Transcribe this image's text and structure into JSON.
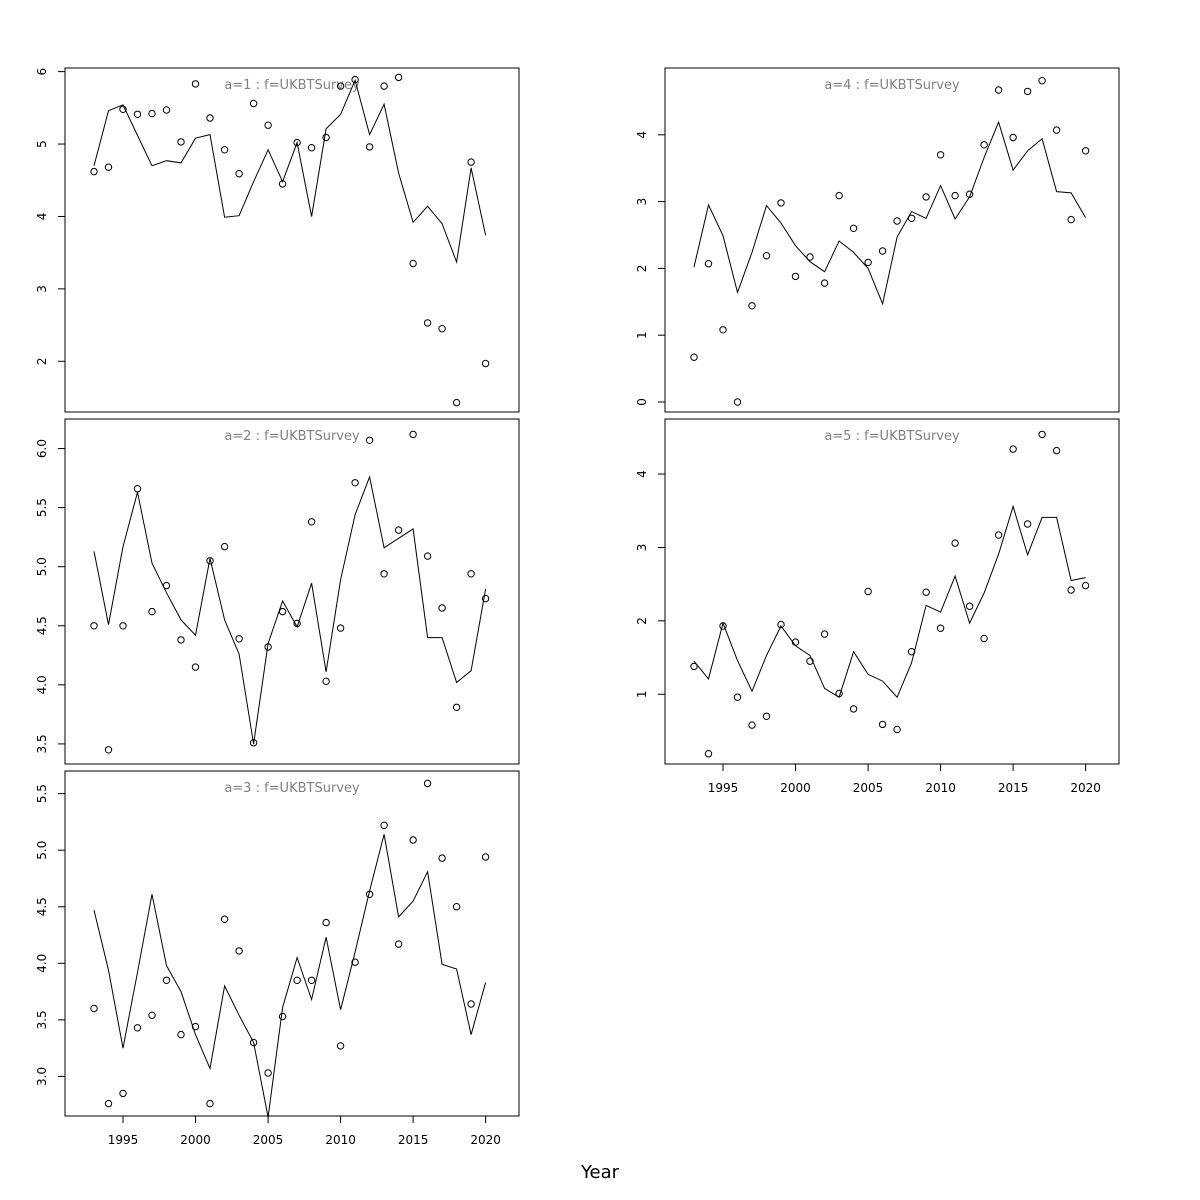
{
  "xlabel": "Year",
  "chart_data": [
    {
      "type": "line",
      "title": "a=1 : f=UKBTSurvey",
      "x": [
        1993,
        1994,
        1995,
        1996,
        1997,
        1998,
        1999,
        2000,
        2001,
        2002,
        2003,
        2004,
        2005,
        2006,
        2007,
        2008,
        2009,
        2010,
        2011,
        2012,
        2013,
        2014,
        2015,
        2016,
        2017,
        2018,
        2019,
        2020
      ],
      "series": [
        {
          "style": "points",
          "values": [
            4.62,
            4.68,
            5.48,
            5.41,
            5.42,
            5.47,
            5.03,
            5.83,
            5.36,
            4.92,
            4.59,
            5.56,
            5.26,
            4.45,
            5.02,
            4.95,
            5.09,
            5.8,
            5.89,
            4.96,
            5.8,
            5.92,
            3.35,
            2.53,
            2.45,
            1.43,
            4.75,
            1.97
          ]
        },
        {
          "style": "line",
          "values": [
            4.7,
            5.46,
            5.54,
            5.12,
            4.7,
            4.77,
            4.74,
            5.08,
            5.13,
            3.99,
            4.01,
            4.48,
            4.92,
            4.48,
            5.02,
            4.0,
            5.21,
            5.41,
            5.88,
            5.13,
            5.55,
            4.6,
            3.92,
            4.14,
            3.9,
            3.37,
            4.67,
            3.74
          ]
        }
      ],
      "ylim": [
        1.3,
        6.05
      ],
      "yticks": [
        2,
        3,
        4,
        5,
        6
      ],
      "yticklabels": [
        "2",
        "3",
        "4",
        "5",
        "6"
      ],
      "xticks": [],
      "xticklabels": []
    },
    {
      "type": "line",
      "title": "a=2 : f=UKBTSurvey",
      "x": [
        1993,
        1994,
        1995,
        1996,
        1997,
        1998,
        1999,
        2000,
        2001,
        2002,
        2003,
        2004,
        2005,
        2006,
        2007,
        2008,
        2009,
        2010,
        2011,
        2012,
        2013,
        2014,
        2015,
        2016,
        2017,
        2018,
        2019,
        2020
      ],
      "series": [
        {
          "style": "points",
          "values": [
            4.5,
            3.45,
            4.5,
            5.66,
            4.62,
            4.84,
            4.38,
            4.15,
            5.05,
            5.17,
            4.39,
            3.51,
            4.32,
            4.62,
            4.52,
            5.38,
            4.03,
            4.48,
            5.71,
            6.07,
            4.94,
            5.31,
            6.12,
            5.09,
            4.65,
            3.81,
            4.94,
            4.73
          ]
        },
        {
          "style": "line",
          "values": [
            5.13,
            4.51,
            5.17,
            5.63,
            5.03,
            4.78,
            4.55,
            4.42,
            5.07,
            4.55,
            4.26,
            3.5,
            4.35,
            4.71,
            4.49,
            4.86,
            4.11,
            4.89,
            5.44,
            5.76,
            5.16,
            5.24,
            5.32,
            4.4,
            4.4,
            4.02,
            4.12,
            4.81
          ]
        }
      ],
      "ylim": [
        3.33,
        6.25
      ],
      "yticks": [
        3.5,
        4.0,
        4.5,
        5.0,
        5.5,
        6.0
      ],
      "yticklabels": [
        "3.5",
        "4.0",
        "4.5",
        "5.0",
        "5.5",
        "6.0"
      ],
      "xticks": [],
      "xticklabels": []
    },
    {
      "type": "line",
      "title": "a=3 : f=UKBTSurvey",
      "x": [
        1993,
        1994,
        1995,
        1996,
        1997,
        1998,
        1999,
        2000,
        2001,
        2002,
        2003,
        2004,
        2005,
        2006,
        2007,
        2008,
        2009,
        2010,
        2011,
        2012,
        2013,
        2014,
        2015,
        2016,
        2017,
        2018,
        2019,
        2020
      ],
      "series": [
        {
          "style": "points",
          "values": [
            3.6,
            2.76,
            2.85,
            3.43,
            3.54,
            3.85,
            3.37,
            3.44,
            2.76,
            4.39,
            4.11,
            3.3,
            3.03,
            3.53,
            3.85,
            3.85,
            4.36,
            3.27,
            4.01,
            4.61,
            5.22,
            4.17,
            5.09,
            5.59,
            4.93,
            4.5,
            3.64,
            4.94
          ]
        },
        {
          "style": "line",
          "values": [
            4.47,
            3.94,
            3.25,
            3.92,
            4.61,
            3.98,
            3.75,
            3.37,
            3.07,
            3.8,
            3.54,
            3.3,
            2.64,
            3.61,
            4.05,
            3.68,
            4.23,
            3.59,
            4.1,
            4.64,
            5.14,
            4.41,
            4.55,
            4.81,
            3.99,
            3.95,
            3.37,
            3.83
          ]
        }
      ],
      "ylim": [
        2.65,
        5.7
      ],
      "yticks": [
        3.0,
        3.5,
        4.0,
        4.5,
        5.0,
        5.5
      ],
      "yticklabels": [
        "3.0",
        "3.5",
        "4.0",
        "4.5",
        "5.0",
        "5.5"
      ],
      "xticks": [
        1995,
        2000,
        2005,
        2010,
        2015,
        2020
      ],
      "xticklabels": [
        "1995",
        "2000",
        "2005",
        "2010",
        "2015",
        "2020"
      ]
    },
    {
      "type": "line",
      "title": "a=4 : f=UKBTSurvey",
      "x": [
        1993,
        1994,
        1995,
        1996,
        1997,
        1998,
        1999,
        2000,
        2001,
        2002,
        2003,
        2004,
        2005,
        2006,
        2007,
        2008,
        2009,
        2010,
        2011,
        2012,
        2013,
        2014,
        2015,
        2016,
        2017,
        2018,
        2019,
        2020
      ],
      "series": [
        {
          "style": "points",
          "values": [
            0.67,
            2.07,
            1.08,
            0.0,
            1.44,
            2.19,
            2.98,
            1.88,
            2.17,
            1.78,
            3.09,
            2.6,
            2.09,
            2.26,
            2.71,
            2.75,
            3.07,
            3.7,
            3.09,
            3.11,
            3.85,
            4.67,
            3.96,
            4.65,
            4.81,
            4.07,
            2.73,
            3.76
          ]
        },
        {
          "style": "line",
          "values": [
            2.02,
            2.95,
            2.49,
            1.64,
            2.24,
            2.94,
            2.68,
            2.34,
            2.1,
            1.95,
            2.41,
            2.24,
            2.0,
            1.47,
            2.47,
            2.85,
            2.75,
            3.24,
            2.74,
            3.07,
            3.66,
            4.19,
            3.47,
            3.76,
            3.94,
            3.15,
            3.13,
            2.76
          ]
        }
      ],
      "ylim": [
        -0.15,
        5.0
      ],
      "yticks": [
        0,
        1,
        2,
        3,
        4
      ],
      "yticklabels": [
        "0",
        "1",
        "2",
        "3",
        "4"
      ],
      "xticks": [],
      "xticklabels": []
    },
    {
      "type": "line",
      "title": "a=5 : f=UKBTSurvey",
      "x": [
        1993,
        1994,
        1995,
        1996,
        1997,
        1998,
        1999,
        2000,
        2001,
        2002,
        2003,
        2004,
        2005,
        2006,
        2007,
        2008,
        2009,
        2010,
        2011,
        2012,
        2013,
        2014,
        2015,
        2016,
        2017,
        2018,
        2019,
        2020
      ],
      "series": [
        {
          "style": "points",
          "values": [
            1.38,
            0.19,
            1.93,
            0.96,
            0.58,
            0.7,
            1.95,
            1.71,
            1.45,
            1.82,
            1.01,
            0.8,
            2.4,
            0.59,
            0.52,
            1.58,
            2.39,
            1.9,
            3.06,
            2.2,
            1.76,
            3.17,
            4.34,
            3.32,
            4.54,
            4.32,
            2.42,
            2.48
          ]
        },
        {
          "style": "line",
          "values": [
            1.45,
            1.21,
            1.97,
            1.46,
            1.04,
            1.53,
            1.93,
            1.66,
            1.53,
            1.08,
            0.96,
            1.58,
            1.27,
            1.18,
            0.96,
            1.43,
            2.21,
            2.12,
            2.61,
            1.97,
            2.38,
            2.91,
            3.56,
            2.9,
            3.41,
            3.41,
            2.55,
            2.59
          ]
        }
      ],
      "ylim": [
        0.05,
        4.75
      ],
      "yticks": [
        1,
        2,
        3,
        4
      ],
      "yticklabels": [
        "1",
        "2",
        "3",
        "4"
      ],
      "xticks": [
        1995,
        2000,
        2005,
        2010,
        2015,
        2020
      ],
      "xticklabels": [
        "1995",
        "2000",
        "2005",
        "2010",
        "2015",
        "2020"
      ]
    }
  ]
}
